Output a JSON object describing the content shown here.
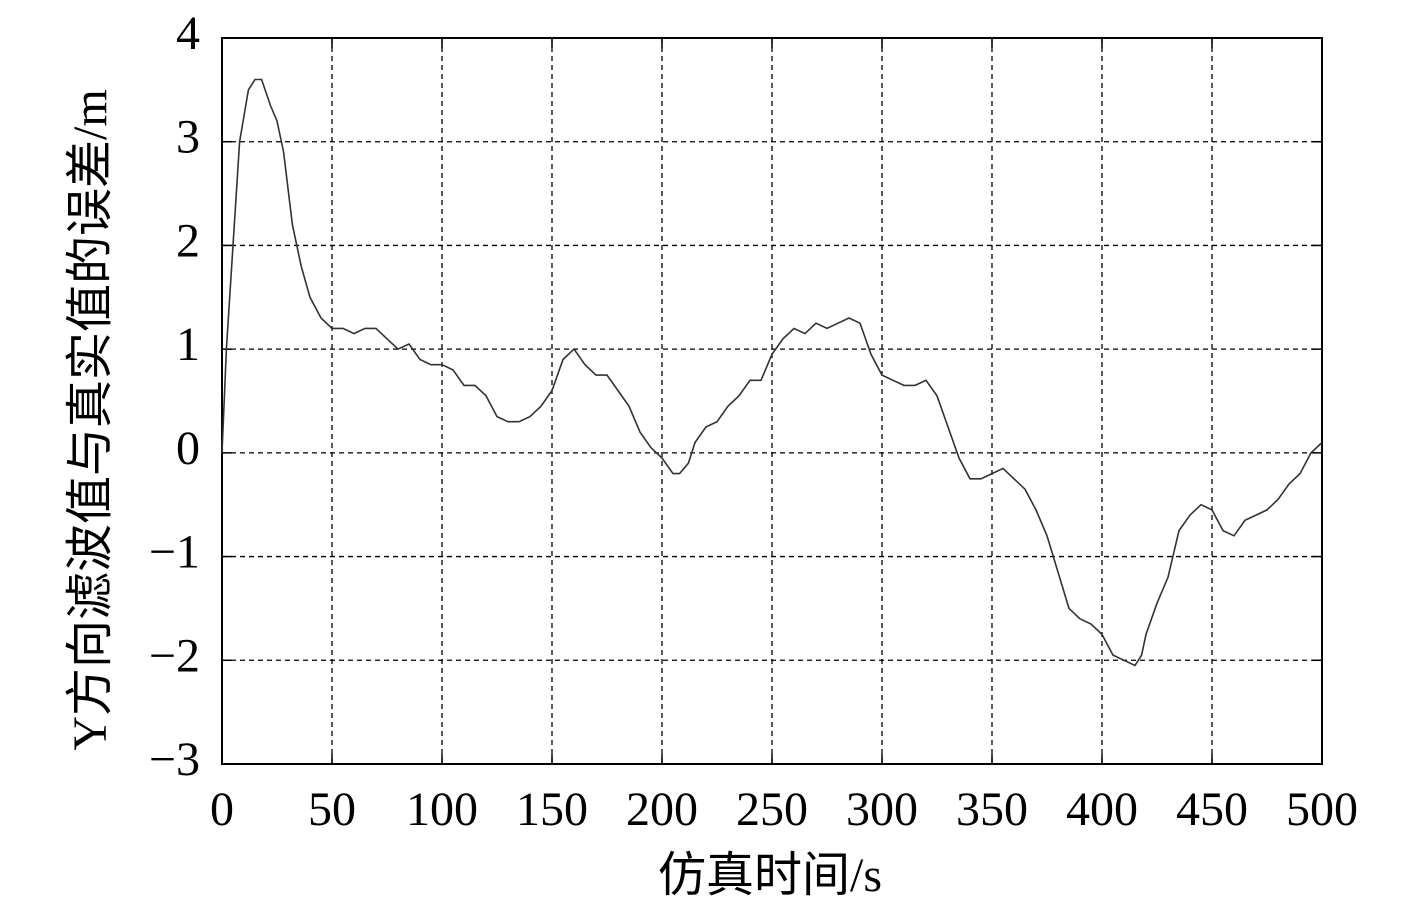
{
  "chart_data": {
    "type": "line",
    "xlabel": "仿真时间/s",
    "ylabel": "Y方向滤波值与真实值的误差/m",
    "xlim": [
      0,
      500
    ],
    "xticks": [
      0,
      50,
      100,
      150,
      200,
      250,
      300,
      350,
      400,
      450,
      500
    ],
    "ylim": [
      -3,
      4
    ],
    "yticks": [
      {
        "value": -3,
        "label": "−3"
      },
      {
        "value": -2,
        "label": "−2"
      },
      {
        "value": -1,
        "label": "−1"
      },
      0,
      1,
      2,
      3,
      4
    ],
    "grid": true,
    "series": [
      {
        "color": "#333333",
        "x": [
          0,
          2,
          5,
          8,
          12,
          15,
          18,
          22,
          25,
          28,
          32,
          36,
          40,
          45,
          50,
          55,
          60,
          65,
          70,
          75,
          80,
          85,
          90,
          95,
          100,
          105,
          110,
          115,
          120,
          125,
          130,
          135,
          140,
          145,
          150,
          155,
          160,
          165,
          170,
          175,
          180,
          185,
          190,
          195,
          200,
          205,
          208,
          212,
          215,
          220,
          225,
          230,
          235,
          240,
          245,
          250,
          255,
          260,
          265,
          270,
          275,
          280,
          285,
          290,
          295,
          300,
          305,
          310,
          315,
          320,
          325,
          330,
          335,
          340,
          345,
          350,
          355,
          360,
          365,
          370,
          375,
          380,
          385,
          390,
          395,
          400,
          405,
          410,
          415,
          418,
          420,
          425,
          430,
          435,
          440,
          445,
          450,
          455,
          460,
          465,
          470,
          475,
          480,
          485,
          490,
          495,
          500
        ],
        "values": [
          0,
          1.0,
          2.0,
          3.0,
          3.5,
          3.6,
          3.6,
          3.35,
          3.2,
          2.9,
          2.2,
          1.8,
          1.5,
          1.3,
          1.2,
          1.2,
          1.15,
          1.2,
          1.2,
          1.1,
          1.0,
          1.05,
          0.9,
          0.85,
          0.85,
          0.8,
          0.65,
          0.65,
          0.55,
          0.35,
          0.3,
          0.3,
          0.35,
          0.45,
          0.6,
          0.9,
          1.0,
          0.85,
          0.75,
          0.75,
          0.6,
          0.45,
          0.2,
          0.05,
          -0.05,
          -0.2,
          -0.2,
          -0.1,
          0.1,
          0.25,
          0.3,
          0.45,
          0.55,
          0.7,
          0.7,
          0.95,
          1.1,
          1.2,
          1.15,
          1.25,
          1.2,
          1.25,
          1.3,
          1.25,
          0.95,
          0.75,
          0.7,
          0.65,
          0.65,
          0.7,
          0.55,
          0.25,
          -0.05,
          -0.25,
          -0.25,
          -0.2,
          -0.15,
          -0.25,
          -0.35,
          -0.55,
          -0.8,
          -1.15,
          -1.5,
          -1.6,
          -1.65,
          -1.75,
          -1.95,
          -2.0,
          -2.05,
          -1.95,
          -1.75,
          -1.45,
          -1.2,
          -0.75,
          -0.6,
          -0.5,
          -0.55,
          -0.75,
          -0.8,
          -0.65,
          -0.6,
          -0.55,
          -0.45,
          -0.3,
          -0.2,
          0.0,
          0.1
        ]
      }
    ]
  }
}
